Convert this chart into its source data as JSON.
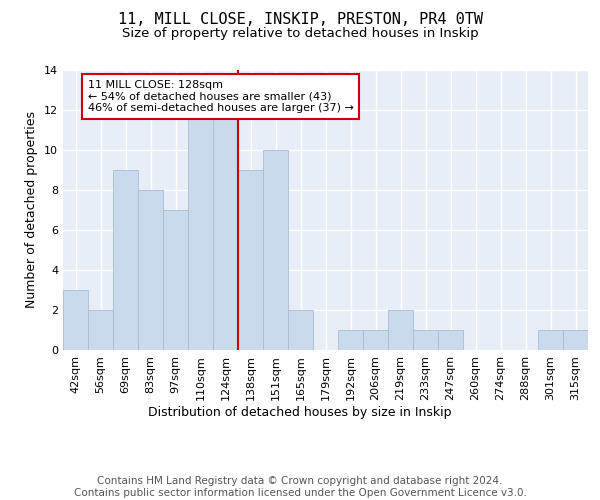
{
  "title1": "11, MILL CLOSE, INSKIP, PRESTON, PR4 0TW",
  "title2": "Size of property relative to detached houses in Inskip",
  "xlabel": "Distribution of detached houses by size in Inskip",
  "ylabel": "Number of detached properties",
  "bar_labels": [
    "42sqm",
    "56sqm",
    "69sqm",
    "83sqm",
    "97sqm",
    "110sqm",
    "124sqm",
    "138sqm",
    "151sqm",
    "165sqm",
    "179sqm",
    "192sqm",
    "206sqm",
    "219sqm",
    "233sqm",
    "247sqm",
    "260sqm",
    "274sqm",
    "288sqm",
    "301sqm",
    "315sqm"
  ],
  "bar_values": [
    3,
    2,
    9,
    8,
    7,
    12,
    12,
    9,
    10,
    2,
    0,
    1,
    1,
    2,
    1,
    1,
    0,
    0,
    0,
    1,
    1
  ],
  "bar_color": "#cad9ec",
  "bar_edgecolor": "#aabbd4",
  "vline_x_idx": 6.5,
  "vline_color": "#cc0000",
  "annotation_text": "11 MILL CLOSE: 128sqm\n← 54% of detached houses are smaller (43)\n46% of semi-detached houses are larger (37) →",
  "annotation_box_color": "#ffffff",
  "annotation_box_edgecolor": "#cc0000",
  "annotation_fontsize": 8.0,
  "ylim": [
    0,
    14
  ],
  "yticks": [
    0,
    2,
    4,
    6,
    8,
    10,
    12,
    14
  ],
  "background_color": "#e8eef7",
  "footnote": "Contains HM Land Registry data © Crown copyright and database right 2024.\nContains public sector information licensed under the Open Government Licence v3.0.",
  "footnote_fontsize": 7.5,
  "title1_fontsize": 11,
  "title2_fontsize": 9.5,
  "xlabel_fontsize": 9,
  "ylabel_fontsize": 9,
  "tick_fontsize": 8
}
